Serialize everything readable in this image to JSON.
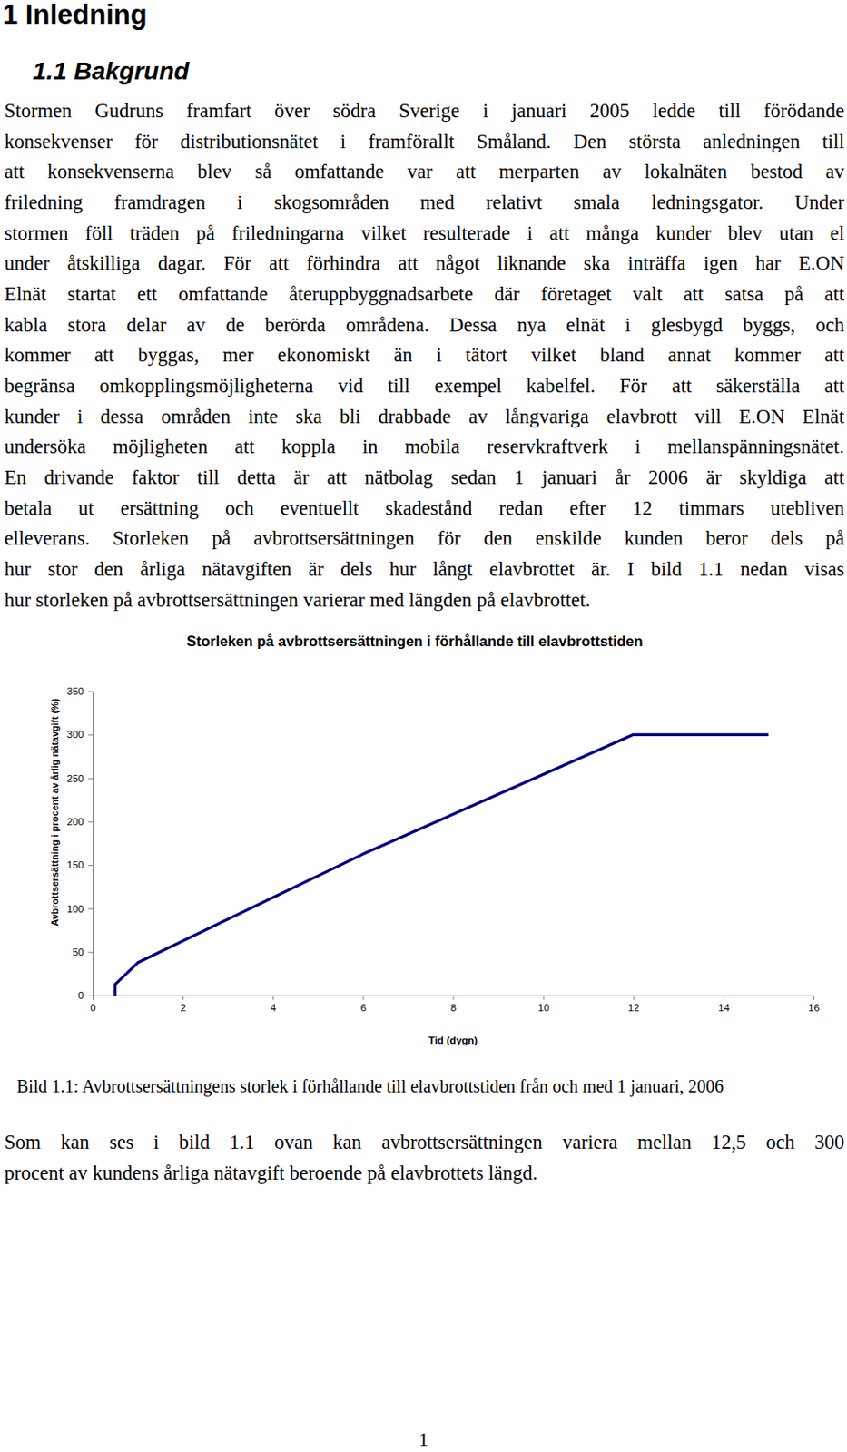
{
  "heading": "1 Inledning",
  "subheading": "1.1 Bakgrund",
  "paragraph_lines": [
    "Stormen Gudruns framfart över södra Sverige i januari 2005 ledde till förödande",
    "konsekvenser för distributionsnätet i framförallt Småland. Den största anledningen till",
    "att konsekvenserna blev så omfattande var att merparten av lokalnäten bestod av",
    "friledning framdragen i skogsområden med relativt smala ledningsgator. Under",
    "stormen föll träden på friledningarna vilket resulterade i att många kunder blev utan el",
    "under åtskilliga dagar. För att förhindra att något liknande ska inträffa igen har E.ON",
    "Elnät startat ett omfattande återuppbyggnadsarbete där företaget valt att satsa på att",
    "kabla stora delar av de berörda områdena. Dessa nya elnät i glesbygd byggs, och",
    "kommer att byggas, mer ekonomiskt än i tätort vilket bland annat kommer att",
    "begränsa omkopplingsmöjligheterna vid till exempel kabelfel. För att säkerställa att",
    "kunder i dessa områden inte ska bli drabbade av långvariga elavbrott vill E.ON Elnät",
    "undersöka möjligheten att koppla in mobila reservkraftverk i mellanspänningsnätet.",
    "En drivande faktor till detta är att nätbolag sedan 1 januari år 2006 är skyldiga att",
    "betala ut ersättning och eventuellt skadestånd redan efter 12 timmars utebliven",
    "elleverans. Storleken på avbrottsersättningen för den enskilde kunden beror dels på",
    "hur stor den årliga nätavgiften är dels hur långt elavbrottet är. I bild 1.1 nedan visas",
    "hur storleken på avbrottsersättningen varierar med längden på elavbrottet."
  ],
  "chart_data": {
    "type": "line",
    "title": "Storleken på avbrottsersättningen i förhållande till elavbrottstiden",
    "x_label": "Tid (dygn)",
    "y_label": "Avbrottsersättning i procent av årlig nätavgift (%)",
    "x": [
      0.5,
      0.5,
      1,
      6,
      12,
      15
    ],
    "values": [
      0,
      12.5,
      37.5,
      162.5,
      300,
      300
    ],
    "color": "#000080",
    "xlim": [
      0,
      16
    ],
    "xticks": [
      0,
      2,
      4,
      6,
      8,
      10,
      12,
      14,
      16
    ],
    "ylim": [
      0,
      350
    ],
    "yticks": [
      0,
      50,
      100,
      150,
      200,
      250,
      300,
      350
    ],
    "grid": false
  },
  "caption": "Bild 1.1: Avbrottsersättningens storlek i förhållande till elavbrottstiden från och med 1 januari, 2006",
  "closing_lines": [
    "Som kan ses i bild 1.1 ovan kan avbrottsersättningen variera mellan 12,5 och 300",
    "procent av kundens årliga nätavgift beroende på elavbrottets längd."
  ],
  "page_number": "1"
}
